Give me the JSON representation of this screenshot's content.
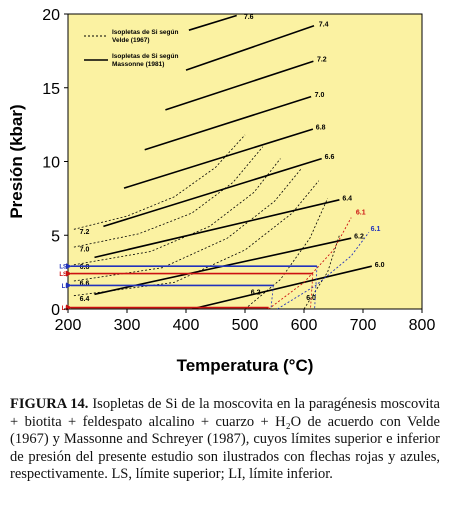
{
  "chart_data": {
    "type": "line",
    "xlabel": "Temperatura (°C)",
    "ylabel": "Presión (kbar)",
    "xlim": [
      200,
      800
    ],
    "ylim": [
      0,
      20
    ],
    "xticks": [
      "200",
      "300",
      "400",
      "500",
      "600",
      "700",
      "800"
    ],
    "yticks": [
      "0",
      "5",
      "10",
      "15",
      "20"
    ],
    "background_color": "#fbf2a2",
    "legend": {
      "position": "top-left",
      "entries": [
        {
          "style": "dashed",
          "label_lines": [
            "Isopletas de Si según",
            "Velde (1967)"
          ]
        },
        {
          "style": "solid",
          "label_lines": [
            "Isopletas de Si según",
            "Massonne (1981)"
          ]
        }
      ]
    },
    "solid_isopleths": [
      {
        "label": "7.6",
        "x": [
          405,
          486
        ],
        "y": [
          18.9,
          19.9
        ]
      },
      {
        "label": "7.4",
        "x": [
          400,
          617
        ],
        "y": [
          16.2,
          19.2
        ]
      },
      {
        "label": "7.2",
        "x": [
          365,
          616
        ],
        "y": [
          13.5,
          16.8
        ]
      },
      {
        "label": "7.0",
        "x": [
          330,
          612
        ],
        "y": [
          10.8,
          14.4
        ]
      },
      {
        "label": "6.8",
        "x": [
          295,
          615
        ],
        "y": [
          8.2,
          12.2
        ]
      },
      {
        "label": "6.6",
        "x": [
          260,
          630
        ],
        "y": [
          5.6,
          10.2
        ]
      },
      {
        "label": "6.4",
        "x": [
          245,
          660
        ],
        "y": [
          3.5,
          7.4
        ]
      },
      {
        "label": "6.2",
        "x": [
          245,
          680
        ],
        "y": [
          1.0,
          4.8
        ]
      },
      {
        "label": "6.0",
        "x": [
          410,
          715
        ],
        "y": [
          0.0,
          2.9
        ]
      }
    ],
    "dashed_isopleths": [
      {
        "label": "7.2",
        "x": [
          210,
          300,
          380,
          450,
          500
        ],
        "y": [
          5.4,
          6.3,
          7.6,
          9.6,
          11.8
        ]
      },
      {
        "label": "7.0",
        "x": [
          210,
          320,
          410,
          480,
          530
        ],
        "y": [
          4.2,
          5.1,
          6.5,
          8.6,
          11.0
        ]
      },
      {
        "label": "6.8",
        "x": [
          210,
          340,
          440,
          515,
          560
        ],
        "y": [
          3.0,
          3.9,
          5.6,
          7.9,
          10.2
        ]
      },
      {
        "label": "6.6",
        "x": [
          210,
          360,
          470,
          550,
          595
        ],
        "y": [
          1.9,
          2.8,
          4.8,
          7.3,
          9.5
        ]
      },
      {
        "label": "6.4",
        "x": [
          210,
          380,
          500,
          580,
          625
        ],
        "y": [
          0.9,
          1.8,
          4.0,
          6.5,
          8.7
        ]
      },
      {
        "label": "6.2",
        "x": [
          500,
          560,
          610,
          640
        ],
        "y": [
          0.0,
          2.0,
          4.8,
          7.5
        ]
      },
      {
        "label": "6.0",
        "x": [
          600,
          640,
          660
        ],
        "y": [
          0.0,
          2.5,
          5.0
        ]
      }
    ],
    "red_isopleth": {
      "label": "6.1",
      "x": [
        540,
        600,
        650,
        680
      ],
      "y": [
        0.0,
        1.8,
        4.0,
        6.2
      ]
    },
    "blue_isopleth": {
      "label": "6.1",
      "x": [
        555,
        620,
        680,
        710
      ],
      "y": [
        0.0,
        1.6,
        3.6,
        5.2
      ]
    },
    "limit_arrows": [
      {
        "color": "#cc1111",
        "label": "LS",
        "y": 2.4,
        "x_end": 615
      },
      {
        "color": "#cc1111",
        "label": "LI",
        "y": 0.1,
        "x_end": 540
      },
      {
        "color": "#2233bb",
        "label": "LS",
        "y": 2.9,
        "x_end": 622
      },
      {
        "color": "#2233bb",
        "label": "LI",
        "y": 1.6,
        "x_end": 548
      }
    ]
  },
  "caption": {
    "label": "FIGURA 14.",
    "text": " Isopletas de Si de la moscovita en la paragénesis moscovita + biotita + feldespato alcalino + cuarzo + H₂O de acuerdo con Velde (1967) y Massonne and Schreyer (1987), cuyos límites superior e inferior de presión del presente estudio son ilustrados con flechas rojas y azules, respectivamente. LS, límite superior; LI, límite inferior."
  }
}
